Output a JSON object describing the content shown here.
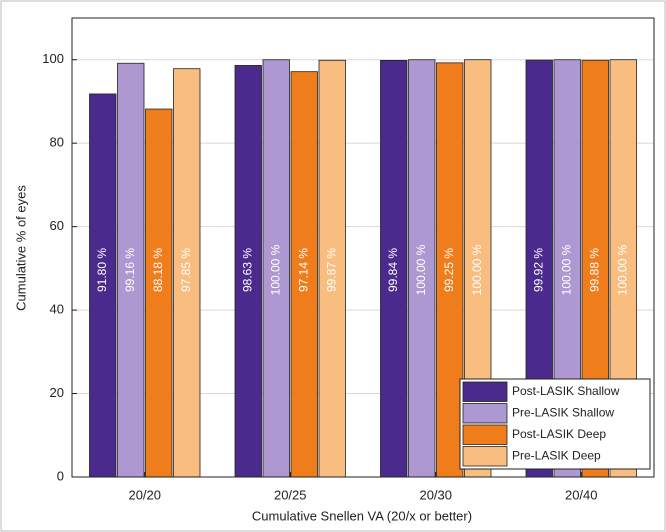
{
  "chart_data": {
    "type": "bar",
    "xlabel": "Cumulative Snellen VA (20/x or better)",
    "ylabel": "Cumulative % of eyes",
    "categories": [
      "20/20",
      "20/25",
      "20/30",
      "20/40"
    ],
    "series": [
      {
        "name": "Post-LASIK Shallow",
        "color": "#4a2b8d",
        "values": [
          91.8,
          98.63,
          99.84,
          99.92
        ],
        "value_labels": [
          "91.80 %",
          "98.63 %",
          "99.84 %",
          "99.92 %"
        ]
      },
      {
        "name": "Pre-LASIK Shallow",
        "color": "#ae98d2",
        "values": [
          99.16,
          100,
          100,
          100
        ],
        "value_labels": [
          "99.16 %",
          "100.00 %",
          "100.00 %",
          "100.00 %"
        ]
      },
      {
        "name": "Post-LASIK Deep",
        "color": "#f07d1b",
        "values": [
          88.18,
          97.14,
          99.25,
          99.88
        ],
        "value_labels": [
          "88.18 %",
          "97.14 %",
          "99.25 %",
          "99.88 %"
        ]
      },
      {
        "name": "Pre-LASIK Deep",
        "color": "#f8bd7f",
        "values": [
          97.85,
          99.87,
          100,
          100
        ],
        "value_labels": [
          "97.85 %",
          "99.87 %",
          "100.00 %",
          "100.00 %"
        ]
      }
    ],
    "ylim": [
      0,
      110
    ],
    "yticks": [
      0,
      20,
      40,
      60,
      80,
      100
    ],
    "grid": true,
    "legend": "lower right"
  }
}
